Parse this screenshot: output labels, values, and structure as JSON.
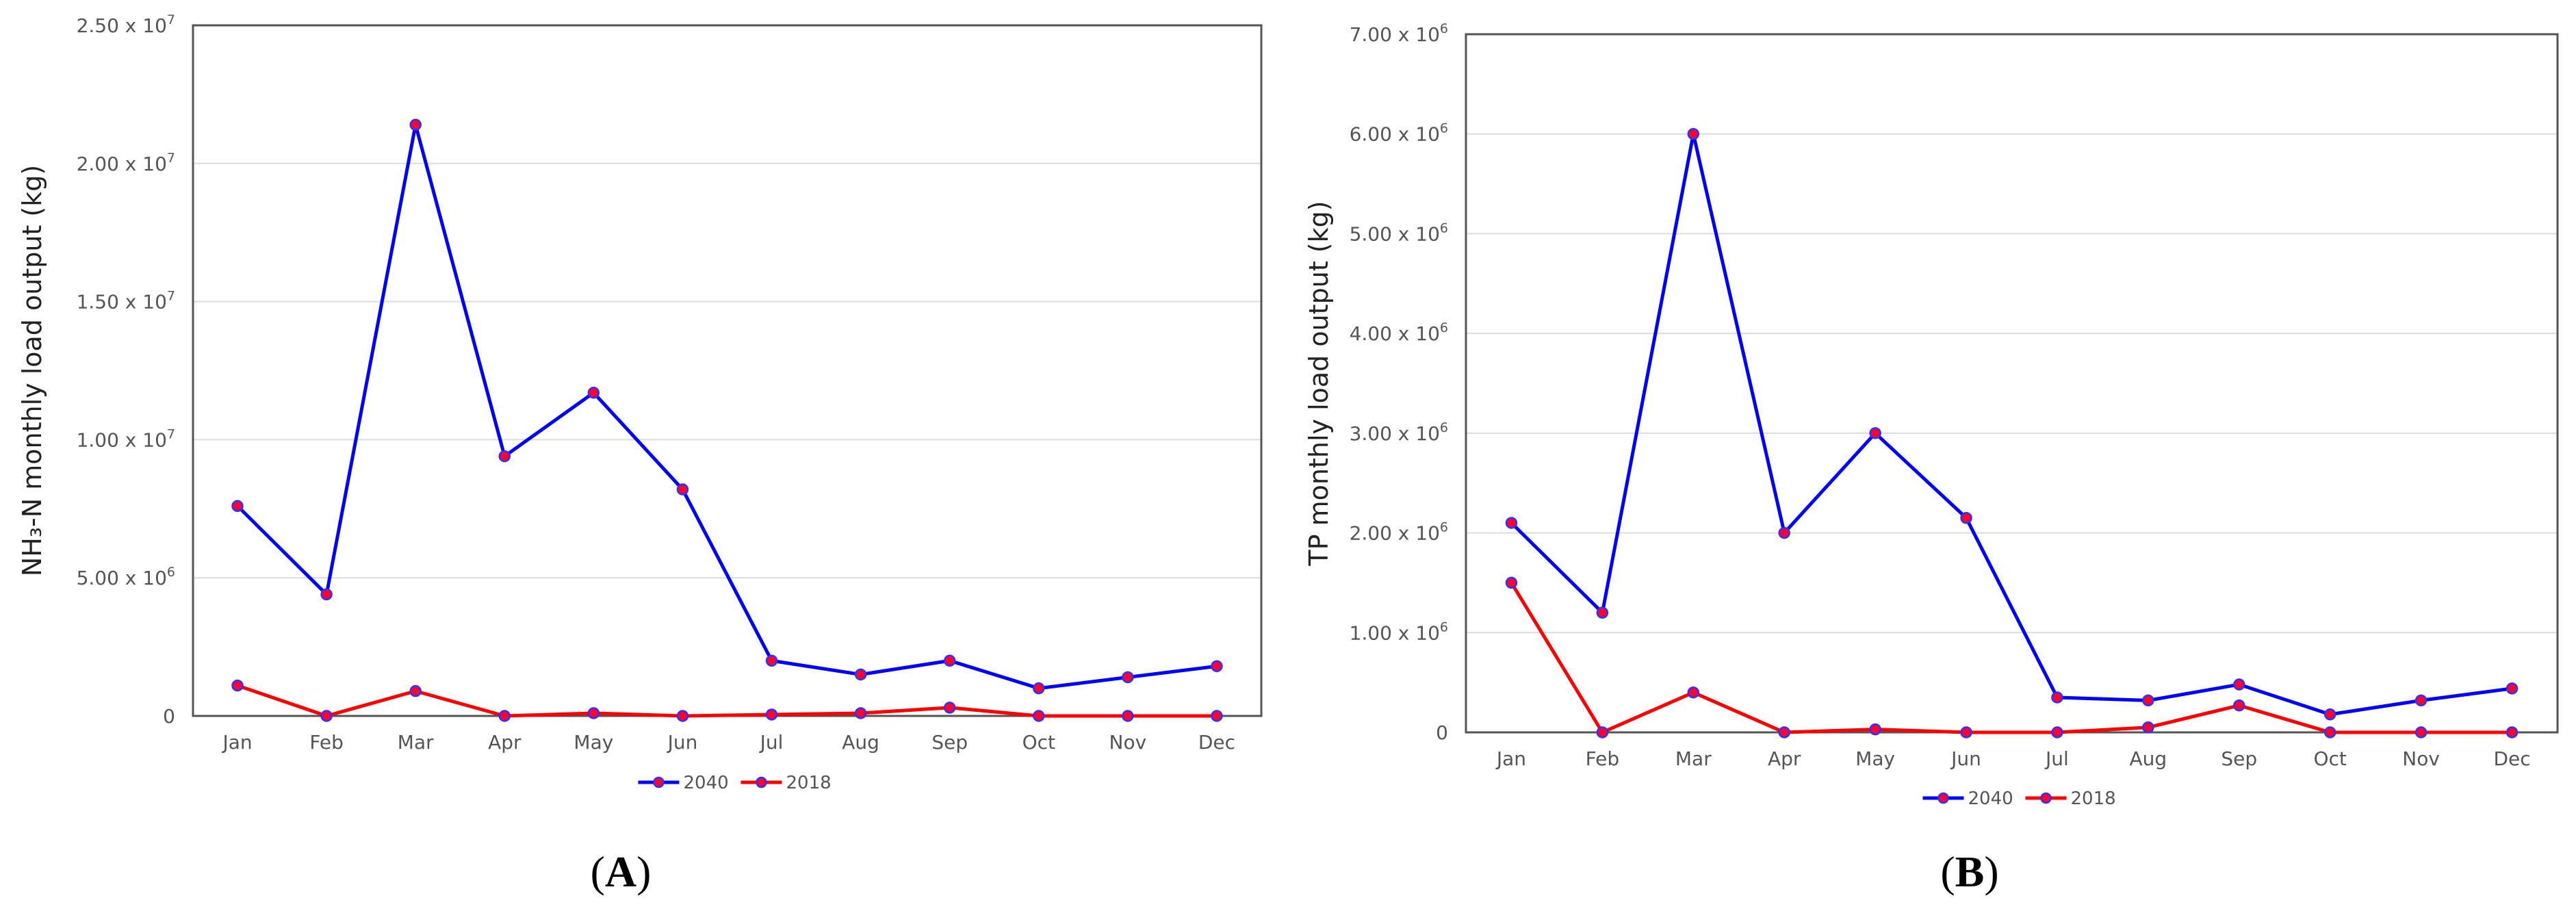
{
  "chart_data": [
    {
      "panel_label": "A",
      "type": "line",
      "ylabel": "NH₃-N monthly load output (kg)",
      "categories": [
        "Jan",
        "Feb",
        "Mar",
        "Apr",
        "May",
        "Jun",
        "Jul",
        "Aug",
        "Sep",
        "Oct",
        "Nov",
        "Dec"
      ],
      "ylim": [
        0,
        25000000
      ],
      "yticks": [
        0,
        5000000,
        10000000,
        15000000,
        20000000,
        25000000
      ],
      "ytick_labels": [
        "0",
        "5.00 x 10^6",
        "1.00 x 10^7",
        "1.50 x 10^7",
        "2.00 x 10^7",
        "2.50 x 10^7"
      ],
      "grid": true,
      "legend": "bottom",
      "series": [
        {
          "name": "2040",
          "color": "#0000ff",
          "values": [
            7600000,
            4400000,
            21400000,
            9400000,
            11700000,
            8200000,
            2000000,
            1500000,
            2000000,
            1000000,
            1400000,
            1800000
          ]
        },
        {
          "name": "2018",
          "color": "#ff0000",
          "values": [
            1100000,
            0,
            900000,
            0,
            100000,
            0,
            50000,
            100000,
            300000,
            0,
            0,
            0
          ]
        }
      ]
    },
    {
      "panel_label": "B",
      "type": "line",
      "ylabel": "TP monthly load output (kg)",
      "categories": [
        "Jan",
        "Feb",
        "Mar",
        "Apr",
        "May",
        "Jun",
        "Jul",
        "Aug",
        "Sep",
        "Oct",
        "Nov",
        "Dec"
      ],
      "ylim": [
        0,
        7000000
      ],
      "yticks": [
        0,
        1000000,
        2000000,
        3000000,
        4000000,
        5000000,
        6000000,
        7000000
      ],
      "ytick_labels": [
        "0",
        "1.00 x 10^6",
        "2.00 x 10^6",
        "3.00 x 10^6",
        "4.00 x 10^6",
        "5.00 x 10^6",
        "6.00 x 10^6",
        "7.00 x 10^6"
      ],
      "grid": true,
      "legend": "bottom",
      "series": [
        {
          "name": "2040",
          "color": "#0000ff",
          "values": [
            2100000,
            1200000,
            6000000,
            2000000,
            3000000,
            2150000,
            350000,
            320000,
            480000,
            180000,
            320000,
            440000
          ]
        },
        {
          "name": "2018",
          "color": "#ff0000",
          "values": [
            1500000,
            0,
            400000,
            0,
            30000,
            0,
            0,
            50000,
            270000,
            0,
            0,
            0
          ]
        }
      ]
    }
  ]
}
